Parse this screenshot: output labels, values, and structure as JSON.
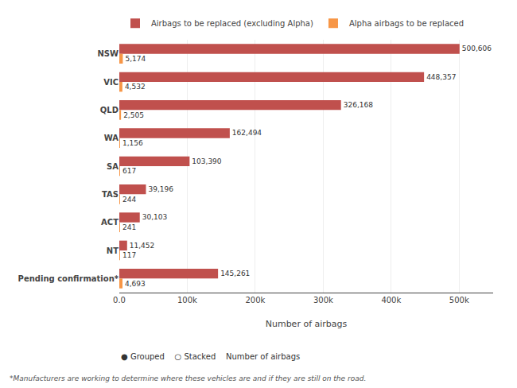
{
  "chart_data": {
    "type": "bar",
    "orientation": "horizontal",
    "categories": [
      "NSW",
      "VIC",
      "QLD",
      "WA",
      "SA",
      "TAS",
      "ACT",
      "NT",
      "Pending confirmation*"
    ],
    "series": [
      {
        "name": "Airbags to be replaced (excluding Alpha)",
        "color": "#c0504d",
        "values": [
          500606,
          448357,
          326168,
          162494,
          103390,
          39196,
          30103,
          11452,
          145261
        ],
        "value_labels": [
          "500,606",
          "448,357",
          "326,168",
          "162,494",
          "103,390",
          "39,196",
          "30,103",
          "11,452",
          "145,261"
        ]
      },
      {
        "name": "Alpha airbags to be replaced",
        "color": "#f79646",
        "values": [
          5174,
          4532,
          2505,
          1156,
          617,
          244,
          241,
          117,
          4693
        ],
        "value_labels": [
          "5,174",
          "4,532",
          "2,505",
          "1,156",
          "617",
          "244",
          "241",
          "117",
          "4,693"
        ]
      }
    ],
    "xlabel": "Number of airbags",
    "xlim": [
      0,
      550000
    ],
    "xticks": [
      {
        "value": 0,
        "label": "0.0"
      },
      {
        "value": 100000,
        "label": "100k"
      },
      {
        "value": 200000,
        "label": "200k"
      },
      {
        "value": 300000,
        "label": "300k"
      },
      {
        "value": 400000,
        "label": "400k"
      },
      {
        "value": 500000,
        "label": "500k"
      }
    ],
    "grid": true,
    "legend": "top left",
    "data_labels": true,
    "annotations": [
      "● Grouped",
      "○ Stacked",
      "Number of airbags",
      "*Manufacturers are working to determine where these vehicles are and if they are still on the road."
    ]
  }
}
